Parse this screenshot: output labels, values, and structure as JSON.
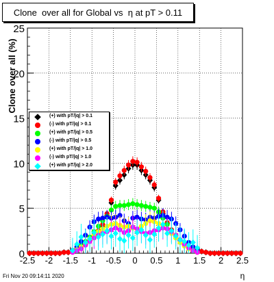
{
  "title": "Clone  over all for Global vs  η at pT > 0.11",
  "footer": "Fri Nov 20 09:14:11 2020",
  "chart_data": {
    "type": "scatter",
    "xlabel": "η",
    "ylabel": "Clone  over all (%)",
    "xlim": [
      -2.5,
      2.5
    ],
    "ylim": [
      0,
      25
    ],
    "xticks": [
      "-2.5",
      "-2",
      "-1.5",
      "-1",
      "-0.5",
      "0",
      "0.5",
      "1",
      "1.5",
      "2",
      "2.5"
    ],
    "yticks": [
      "0",
      "5",
      "10",
      "15",
      "20",
      "25"
    ],
    "grid": true,
    "legend_position": "middle-left",
    "series": [
      {
        "name": "(+) with pT/|q| > 0.1",
        "color": "#000000",
        "marker": "diamond",
        "x": [
          -2.45,
          -2.35,
          -2.25,
          -2.15,
          -2.05,
          -1.95,
          -1.85,
          -1.75,
          -1.65,
          -1.55,
          -1.45,
          -1.35,
          -1.25,
          -1.15,
          -1.05,
          -0.95,
          -0.85,
          -0.75,
          -0.65,
          -0.55,
          -0.45,
          -0.35,
          -0.25,
          -0.15,
          -0.05,
          0.05,
          0.15,
          0.25,
          0.35,
          0.45,
          0.55,
          0.65,
          0.75,
          0.85,
          0.95,
          1.05,
          1.15,
          1.25,
          1.35,
          1.45,
          1.55,
          1.65,
          1.75,
          1.85,
          1.95,
          2.05,
          2.15,
          2.25,
          2.35,
          2.45
        ],
        "y": [
          0,
          0,
          0,
          0,
          0,
          0,
          0,
          0,
          0.1,
          0.1,
          0.3,
          0.4,
          0.7,
          1.0,
          1.4,
          1.9,
          2.4,
          3.0,
          4.2,
          5.6,
          7.5,
          8.1,
          8.7,
          9.4,
          9.8,
          9.8,
          9.2,
          8.7,
          8.1,
          7.3,
          5.9,
          4.4,
          3.3,
          2.5,
          1.9,
          1.4,
          1.0,
          0.7,
          0.5,
          0.3,
          0.2,
          0.1,
          0,
          0,
          0,
          0,
          0,
          0,
          0,
          0
        ]
      },
      {
        "name": "(-) with pT/|q| > 0.1",
        "color": "#ff0000",
        "marker": "circle",
        "x": [
          -2.45,
          -2.35,
          -2.25,
          -2.15,
          -2.05,
          -1.95,
          -1.85,
          -1.75,
          -1.65,
          -1.55,
          -1.45,
          -1.35,
          -1.25,
          -1.15,
          -1.05,
          -0.95,
          -0.85,
          -0.75,
          -0.65,
          -0.55,
          -0.45,
          -0.35,
          -0.25,
          -0.15,
          -0.05,
          0.05,
          0.15,
          0.25,
          0.35,
          0.45,
          0.55,
          0.65,
          0.75,
          0.85,
          0.95,
          1.05,
          1.15,
          1.25,
          1.35,
          1.45,
          1.55,
          1.65,
          1.75,
          1.85,
          1.95,
          2.05,
          2.15,
          2.25,
          2.35,
          2.45
        ],
        "y": [
          0,
          0,
          0,
          0,
          0,
          0,
          0,
          0,
          0.1,
          0.1,
          0.3,
          0.5,
          0.8,
          1.1,
          1.5,
          2.0,
          2.5,
          3.2,
          4.4,
          5.9,
          7.9,
          8.6,
          9.2,
          9.8,
          10.2,
          10.1,
          9.6,
          9.1,
          8.4,
          7.6,
          6.1,
          4.6,
          3.4,
          2.6,
          2.0,
          1.5,
          1.1,
          0.7,
          0.5,
          0.3,
          0.2,
          0.1,
          0,
          0,
          0,
          0,
          0,
          0,
          0,
          0
        ]
      },
      {
        "name": "(+) with pT/|q| > 0.5",
        "color": "#00ff00",
        "marker": "circle",
        "x": [
          -1.45,
          -1.35,
          -1.25,
          -1.15,
          -1.05,
          -0.95,
          -0.85,
          -0.75,
          -0.65,
          -0.55,
          -0.45,
          -0.35,
          -0.25,
          -0.15,
          -0.05,
          0.05,
          0.15,
          0.25,
          0.35,
          0.45,
          0.55,
          0.65,
          0.75,
          0.85,
          0.95,
          1.05,
          1.15,
          1.25,
          1.35,
          1.45
        ],
        "y": [
          0.2,
          0.5,
          0.9,
          1.3,
          1.8,
          2.4,
          3.0,
          3.6,
          4.1,
          4.8,
          5.2,
          5.3,
          5.3,
          5.4,
          5.5,
          5.4,
          5.3,
          5.2,
          5.1,
          5.0,
          4.6,
          3.9,
          3.2,
          2.4,
          1.7,
          1.2,
          0.9,
          0.6,
          0.4,
          0.2
        ]
      },
      {
        "name": "(-) with pT/|q| > 0.5",
        "color": "#0000ff",
        "marker": "circle",
        "x": [
          -1.45,
          -1.35,
          -1.25,
          -1.15,
          -1.05,
          -0.95,
          -0.85,
          -0.75,
          -0.65,
          -0.55,
          -0.45,
          -0.35,
          -0.25,
          -0.15,
          -0.05,
          0.05,
          0.15,
          0.25,
          0.35,
          0.45,
          0.55,
          0.65,
          0.75,
          0.85,
          0.95,
          1.05,
          1.15,
          1.25,
          1.35,
          1.45
        ],
        "y": [
          0.3,
          0.7,
          1.3,
          2.0,
          2.9,
          3.5,
          3.8,
          3.9,
          4.0,
          3.9,
          4.0,
          4.2,
          3.6,
          3.3,
          3.9,
          4.0,
          3.8,
          3.7,
          4.0,
          3.9,
          4.1,
          4.2,
          4.0,
          3.8,
          3.3,
          2.6,
          1.9,
          1.2,
          0.7,
          0.3
        ]
      },
      {
        "name": "(+) with pT/|q| > 1.0",
        "color": "#ffff00",
        "marker": "circle",
        "x": [
          -1.45,
          -1.35,
          -1.25,
          -1.15,
          -1.05,
          -0.95,
          -0.85,
          -0.75,
          -0.65,
          -0.55,
          -0.45,
          -0.35,
          -0.25,
          -0.15,
          -0.05,
          0.05,
          0.15,
          0.25,
          0.35,
          0.45,
          0.55,
          0.65,
          0.75,
          0.85,
          0.95,
          1.05,
          1.15,
          1.25,
          1.35,
          1.45
        ],
        "y": [
          0.2,
          0.4,
          0.7,
          1.1,
          1.6,
          2.0,
          2.4,
          2.7,
          3.0,
          3.2,
          3.3,
          3.1,
          2.9,
          3.0,
          2.8,
          2.7,
          3.0,
          3.3,
          3.6,
          3.5,
          3.3,
          3.1,
          2.7,
          2.2,
          1.7,
          1.2,
          0.8,
          0.5,
          0.3,
          0.1
        ]
      },
      {
        "name": "(-) with pT/|q| > 1.0",
        "color": "#ff00ff",
        "marker": "circle",
        "x": [
          -1.45,
          -1.35,
          -1.25,
          -1.15,
          -1.05,
          -0.95,
          -0.85,
          -0.75,
          -0.65,
          -0.55,
          -0.45,
          -0.35,
          -0.25,
          -0.15,
          -0.05,
          0.05,
          0.15,
          0.25,
          0.35,
          0.45,
          0.55,
          0.65,
          0.75,
          0.85,
          0.95,
          1.05,
          1.15,
          1.25,
          1.35,
          1.45
        ],
        "y": [
          0.1,
          0.3,
          0.5,
          0.9,
          1.3,
          1.7,
          2.0,
          2.2,
          2.4,
          2.6,
          2.8,
          2.6,
          2.3,
          2.5,
          2.9,
          2.7,
          2.4,
          2.2,
          2.3,
          2.5,
          2.6,
          2.8,
          2.7,
          2.4,
          2.0,
          1.5,
          1.0,
          0.6,
          0.3,
          0.1
        ]
      },
      {
        "name": "(+) with pT/|q| > 2.0",
        "color": "#00ffff",
        "marker": "diamond",
        "x": [
          -1.45,
          -1.35,
          -1.25,
          -1.15,
          -1.05,
          -0.95,
          -0.85,
          -0.75,
          -0.65,
          -0.55,
          -0.45,
          -0.35,
          -0.25,
          -0.15,
          -0.05,
          0.05,
          0.15,
          0.25,
          0.35,
          0.45,
          0.55,
          0.65,
          0.75,
          0.85,
          0.95,
          1.05,
          1.15,
          1.25,
          1.35,
          1.45
        ],
        "y": [
          0.3,
          1.0,
          1.8,
          1.2,
          1.6,
          2.3,
          1.8,
          2.1,
          2.5,
          1.9,
          2.2,
          1.6,
          1.4,
          2.0,
          1.7,
          2.3,
          2.6,
          2.0,
          1.5,
          2.1,
          2.8,
          3.2,
          2.2,
          2.5,
          1.9,
          1.5,
          1.3,
          0.9,
          1.2,
          0.6
        ]
      }
    ]
  }
}
